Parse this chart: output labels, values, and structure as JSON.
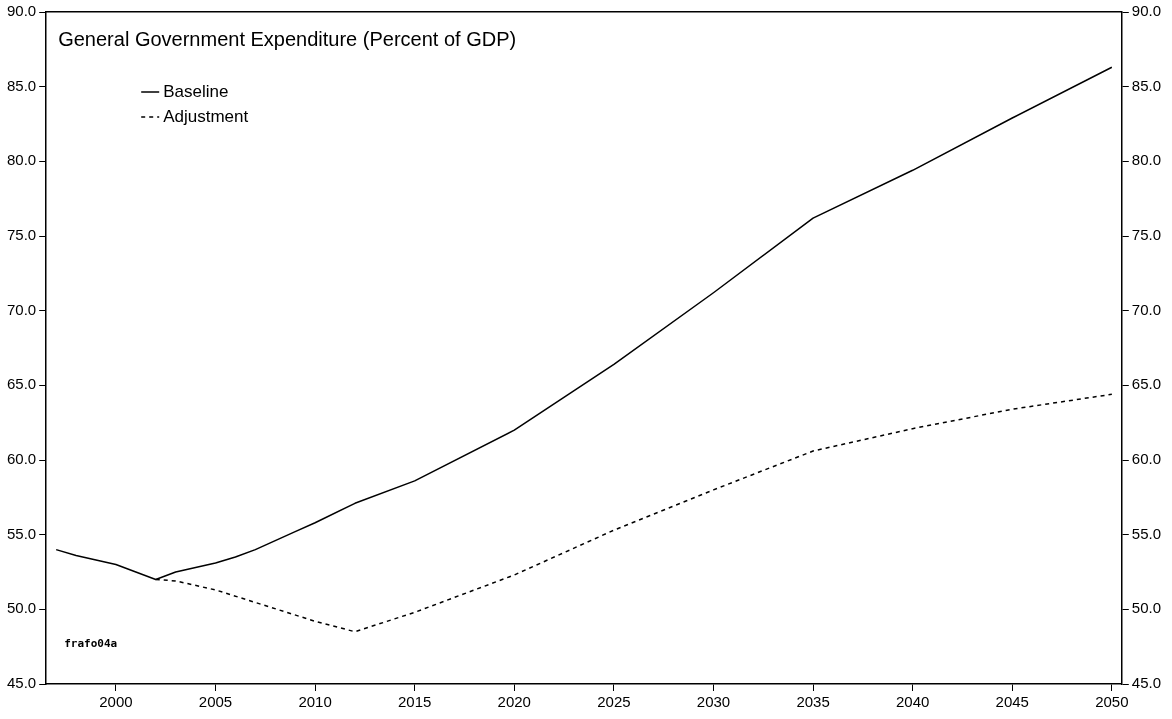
{
  "chart_data": {
    "type": "line",
    "title": "General Government Expenditure (Percent of GDP)",
    "series": [
      {
        "name": "Baseline",
        "color": "#000000",
        "line_style": "solid",
        "x": [
          1997,
          1998,
          1999,
          2000,
          2001,
          2002,
          2003,
          2004,
          2005,
          2006,
          2007,
          2008,
          2009,
          2010,
          2012,
          2015,
          2020,
          2025,
          2030,
          2035,
          2040,
          2045,
          2050
        ],
        "values": [
          54.0,
          53.6,
          53.3,
          53.0,
          52.5,
          52.0,
          52.5,
          52.8,
          53.1,
          53.5,
          54.0,
          54.6,
          55.2,
          55.8,
          57.1,
          58.6,
          62.0,
          66.4,
          71.2,
          76.2,
          79.4,
          82.9,
          86.3
        ]
      },
      {
        "name": "Adjustment",
        "color": "#000000",
        "line_style": "dashed",
        "x": [
          2002,
          2003,
          2005,
          2010,
          2012,
          2015,
          2020,
          2025,
          2030,
          2035,
          2040,
          2045,
          2050
        ],
        "values": [
          52.0,
          51.9,
          51.3,
          49.2,
          48.5,
          49.8,
          52.3,
          55.3,
          58.0,
          60.6,
          62.1,
          63.4,
          64.4
        ]
      }
    ],
    "xlim": [
      1996.5,
      2050.5
    ],
    "xticks": [
      2000,
      2005,
      2010,
      2015,
      2020,
      2025,
      2030,
      2035,
      2040,
      2045,
      2050
    ],
    "ylim": [
      45,
      90
    ],
    "yticks": [
      {
        "value": 45,
        "label": "45.0"
      },
      {
        "value": 50,
        "label": "50.0"
      },
      {
        "value": 55,
        "label": "55.0"
      },
      {
        "value": 60,
        "label": "60.0"
      },
      {
        "value": 65,
        "label": "65.0"
      },
      {
        "value": 70,
        "label": "70.0"
      },
      {
        "value": 75,
        "label": "75.0"
      },
      {
        "value": 80,
        "label": "80.0"
      },
      {
        "value": 85,
        "label": "85.0"
      },
      {
        "value": 90,
        "label": "90.0"
      }
    ],
    "y2lim": [
      45,
      90
    ],
    "y2ticks": [
      {
        "value": 45,
        "label": "45.0"
      },
      {
        "value": 50,
        "label": "50.0"
      },
      {
        "value": 55,
        "label": "55.0"
      },
      {
        "value": 60,
        "label": "60.0"
      },
      {
        "value": 65,
        "label": "65.0"
      },
      {
        "value": 70,
        "label": "70.0"
      },
      {
        "value": 75,
        "label": "75.0"
      },
      {
        "value": 80,
        "label": "80.0"
      },
      {
        "value": 85,
        "label": "85.0"
      },
      {
        "value": 90,
        "label": "90.0"
      }
    ],
    "grid": false,
    "legend": "top left",
    "marker": "none",
    "annotations": [
      "frafo04a"
    ]
  }
}
